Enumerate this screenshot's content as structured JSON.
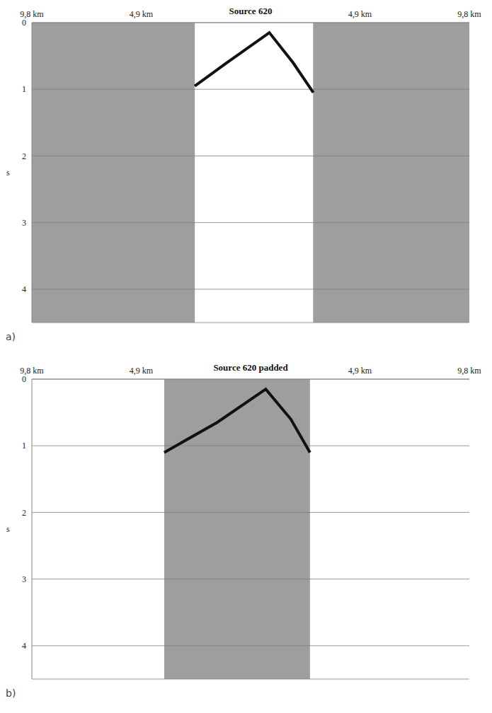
{
  "chart_data": [
    {
      "type": "line",
      "panel": "a)",
      "title": "Source 620",
      "x": [
        -2.5,
        -1.14,
        0.84,
        1.9,
        2.81
      ],
      "values": [
        0.95,
        0.62,
        0.15,
        0.6,
        1.05
      ],
      "xlim": [
        -9.8,
        9.8
      ],
      "xticks": [
        {
          "value": -9.8,
          "label": "9,8 km"
        },
        {
          "value": -4.9,
          "label": "4,9 km"
        },
        {
          "value": 4.9,
          "label": "4,9 km"
        },
        {
          "value": 9.8,
          "label": "9,8 km"
        }
      ],
      "ylim": [
        0,
        4.5
      ],
      "yticks": [
        0,
        1,
        2,
        3,
        4
      ],
      "ylabel": "s",
      "grid": true,
      "regions": [
        [
          -9.8,
          -2.5
        ],
        [
          2.8,
          9.8
        ]
      ],
      "color": "#111111"
    },
    {
      "type": "line",
      "panel": "b)",
      "title": "Source 620 padded",
      "x": [
        -3.87,
        -1.5,
        0.68,
        1.8,
        2.66
      ],
      "values": [
        1.1,
        0.65,
        0.15,
        0.6,
        1.1
      ],
      "xlim": [
        -9.8,
        9.8
      ],
      "xticks": [
        {
          "value": -9.8,
          "label": "9,8 km"
        },
        {
          "value": -4.9,
          "label": "4,9 km"
        },
        {
          "value": 4.9,
          "label": "4,9 km"
        },
        {
          "value": 9.8,
          "label": "9,8 km"
        }
      ],
      "ylim": [
        0,
        4.5
      ],
      "yticks": [
        0,
        1,
        2,
        3,
        4
      ],
      "ylabel": "s",
      "grid": true,
      "regions": [
        [
          -3.87,
          2.66
        ]
      ],
      "color": "#111111"
    }
  ]
}
